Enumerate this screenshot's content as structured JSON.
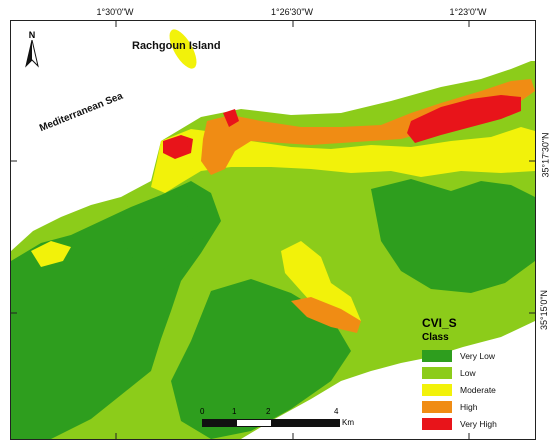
{
  "map": {
    "coordinates_top": [
      "1°30'0\"W",
      "1°26'30\"W",
      "1°23'0\"W"
    ],
    "coordinates_right": [
      "35°17'30\"N",
      "35°15'0\"N"
    ],
    "labels": {
      "sea": "Mediterranean Sea",
      "island": "Rachgoun Island",
      "north": "N"
    }
  },
  "legend": {
    "title": "CVI_S",
    "subtitle": "Class",
    "items": [
      {
        "label": "Very Low",
        "color": "#2e9e1e"
      },
      {
        "label": "Low",
        "color": "#8ccc1a"
      },
      {
        "label": "Moderate",
        "color": "#f2f20a"
      },
      {
        "label": "High",
        "color": "#f08c14"
      },
      {
        "label": "Very High",
        "color": "#e8141a"
      }
    ]
  },
  "scalebar": {
    "ticks": [
      "0",
      "1",
      "2",
      "4"
    ],
    "unit": "Km"
  },
  "colors": {
    "land_very_low": "#2e9e1e",
    "land_low": "#8ccc1a",
    "moderate": "#f2f20a",
    "high": "#f08c14",
    "very_high": "#e8141a"
  }
}
